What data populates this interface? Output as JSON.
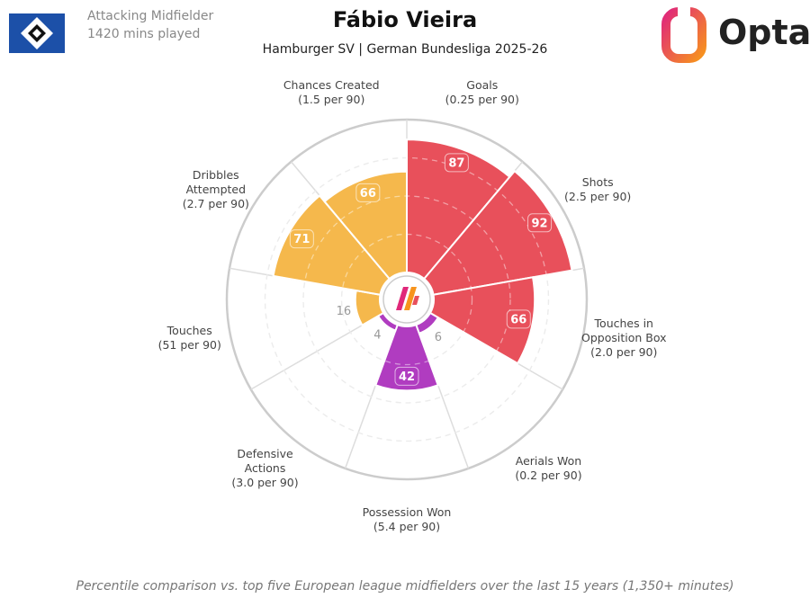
{
  "header": {
    "role": "Attacking Midfielder",
    "minutes": "1420 mins played",
    "brand": "Opta"
  },
  "chart_data": {
    "type": "polar-bar",
    "title": "Fábio Vieira",
    "subtitle": "Hamburger SV | German Bundesliga 2025-26",
    "categories": [
      "Goals",
      "Shots",
      "Touches in Opposition Box",
      "Aerials Won",
      "Possession Won",
      "Defensive Actions",
      "Touches",
      "Dribbles Attempted",
      "Chances Created"
    ],
    "category_notes": [
      "(0.25 per 90)",
      "(2.5 per 90)",
      "(2.0 per 90)",
      "(0.2 per 90)",
      "(5.4 per 90)",
      "(3.0 per 90)",
      "(51 per 90)",
      "(2.7 per 90)",
      "(1.5 per 90)"
    ],
    "values": [
      87,
      92,
      66,
      6,
      42,
      4,
      16,
      71,
      66
    ],
    "colors": [
      "#e8505b",
      "#e8505b",
      "#e8505b",
      "#b03cc0",
      "#b03cc0",
      "#b03cc0",
      "#f5b84c",
      "#f5b84c",
      "#f5b84c"
    ],
    "ylim": [
      0,
      100
    ],
    "yticks": [
      25,
      50,
      75
    ],
    "grid": true,
    "caption": "Percentile comparison vs. top five European league midfielders over the last 15 years (1,350+ minutes)"
  }
}
